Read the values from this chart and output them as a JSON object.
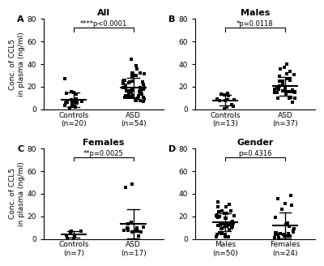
{
  "panels": [
    {
      "label": "A",
      "title": "All",
      "group_labels": [
        "Controls\n(n=20)",
        "ASD\n(n=54)"
      ],
      "sig_text": "****p<0.0001",
      "sig_stars": "****",
      "sig_pval": "p<0.0001",
      "ylim": [
        0,
        80
      ],
      "yticks": [
        0,
        20,
        40,
        60,
        80
      ],
      "controls_mean": 6.5,
      "controls_sd": 5.5,
      "asd_mean": 20.0,
      "asd_sd": 9.0,
      "controls_n": 20,
      "asd_n": 54
    },
    {
      "label": "B",
      "title": "Males",
      "group_labels": [
        "Controls\n(n=13)",
        "ASD\n(n=37)"
      ],
      "sig_text": "*p=0.0118",
      "sig_stars": "*",
      "sig_pval": "p=0.0118",
      "ylim": [
        0,
        80
      ],
      "yticks": [
        0,
        20,
        40,
        60,
        80
      ],
      "controls_mean": 8.0,
      "controls_sd": 5.5,
      "asd_mean": 20.0,
      "asd_sd": 9.0,
      "controls_n": 13,
      "asd_n": 37
    },
    {
      "label": "C",
      "title": "Females",
      "group_labels": [
        "Controls\n(n=7)",
        "ASD\n(n=17)"
      ],
      "sig_text": "**p=0.0025",
      "sig_stars": "**",
      "sig_pval": "p=0.0025",
      "ylim": [
        0,
        80
      ],
      "yticks": [
        0,
        20,
        40,
        60,
        80
      ],
      "controls_mean": 3.0,
      "controls_sd": 2.0,
      "asd_mean": 17.0,
      "asd_sd": 12.0,
      "controls_n": 7,
      "asd_n": 17
    },
    {
      "label": "D",
      "title": "Gender",
      "group_labels": [
        "Males\n(n=50)",
        "Females\n(n=24)"
      ],
      "sig_text": "p=0.4316",
      "sig_stars": "",
      "sig_pval": "p=0.4316",
      "ylim": [
        0,
        80
      ],
      "yticks": [
        0,
        20,
        40,
        60,
        80
      ],
      "controls_mean": 15.0,
      "controls_sd": 10.0,
      "asd_mean": 15.0,
      "asd_sd": 12.0,
      "controls_n": 50,
      "asd_n": 24
    }
  ],
  "marker_size": 9,
  "color": "#000000",
  "bg_color": "#ffffff",
  "ylabel": "Conc. of CCL5\nin plasma (ng/ml)",
  "fig_width": 4.0,
  "fig_height": 3.28,
  "dpi": 100
}
